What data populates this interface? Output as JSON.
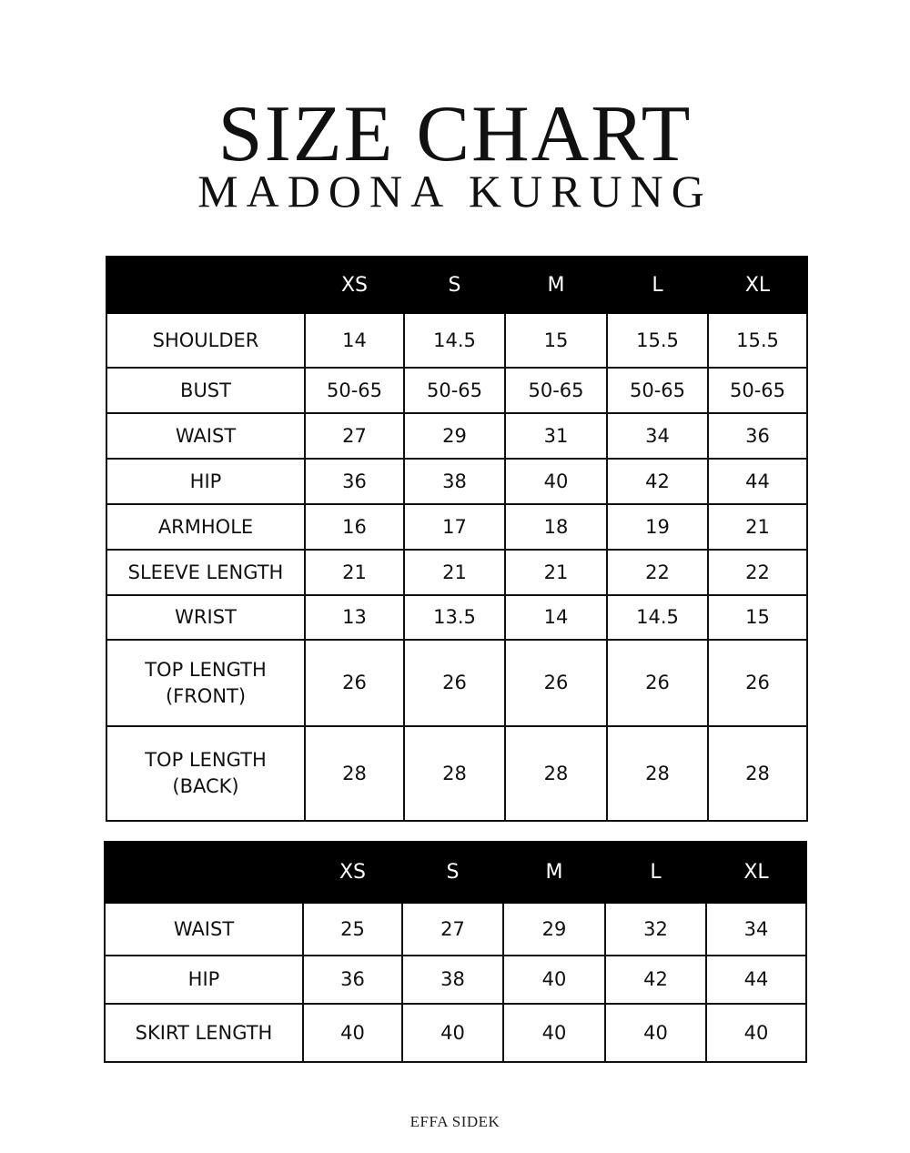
{
  "title": "SIZE CHART",
  "subtitle": "MADONA KURUNG",
  "tables": [
    {
      "sizes": [
        "XS",
        "S",
        "M",
        "L",
        "XL"
      ],
      "rows": [
        {
          "label": "SHOULDER",
          "values": [
            "14",
            "14.5",
            "15",
            "15.5",
            "15.5"
          ]
        },
        {
          "label": "BUST",
          "values": [
            "50-65",
            "50-65",
            "50-65",
            "50-65",
            "50-65"
          ]
        },
        {
          "label": "WAIST",
          "values": [
            "27",
            "29",
            "31",
            "34",
            "36"
          ]
        },
        {
          "label": "HIP",
          "values": [
            "36",
            "38",
            "40",
            "42",
            "44"
          ]
        },
        {
          "label": "ARMHOLE",
          "values": [
            "16",
            "17",
            "18",
            "19",
            "21"
          ]
        },
        {
          "label": "SLEEVE LENGTH",
          "values": [
            "21",
            "21",
            "21",
            "22",
            "22"
          ]
        },
        {
          "label": "WRIST",
          "values": [
            "13",
            "13.5",
            "14",
            "14.5",
            "15"
          ]
        },
        {
          "label": "TOP LENGTH\n(FRONT)",
          "values": [
            "26",
            "26",
            "26",
            "26",
            "26"
          ]
        },
        {
          "label": "TOP LENGTH\n(BACK)",
          "values": [
            "28",
            "28",
            "28",
            "28",
            "28"
          ]
        }
      ]
    },
    {
      "sizes": [
        "XS",
        "S",
        "M",
        "L",
        "XL"
      ],
      "rows": [
        {
          "label": "WAIST",
          "values": [
            "25",
            "27",
            "29",
            "32",
            "34"
          ]
        },
        {
          "label": "HIP",
          "values": [
            "36",
            "38",
            "40",
            "42",
            "44"
          ]
        },
        {
          "label": "SKIRT LENGTH",
          "values": [
            "40",
            "40",
            "40",
            "40",
            "40"
          ]
        }
      ]
    }
  ],
  "footer": "EFFA SIDEK"
}
